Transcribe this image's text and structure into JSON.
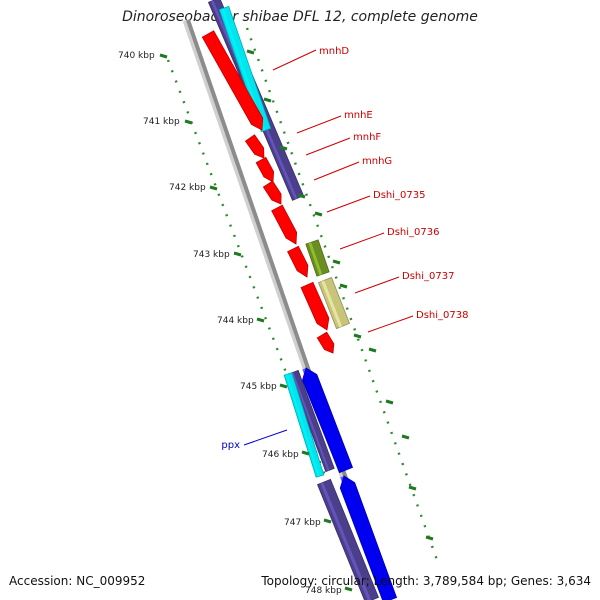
{
  "title": "Dinoroseobacter shibae DFL 12, complete genome",
  "footer": {
    "accession": "Accession: NC_009952",
    "summary": "Topology: circular; Length: 3,789,584 bp; Genes: 3,634"
  },
  "colors": {
    "backbone": "#8c8c8c",
    "red_gene": "#ff0000",
    "navy_gene": "#4b3f8c",
    "cyan_gene": "#00e5ee",
    "blue_gene": "#0000ee",
    "olive_gene": "#6b8e23",
    "khaki_gene": "#c8c47a",
    "tick_green": "#1f7a1f",
    "label_red": "#cc0000",
    "label_blue": "#0000cc"
  },
  "scale_ticks": [
    "740 kbp",
    "741 kbp",
    "742 kbp",
    "743 kbp",
    "744 kbp",
    "745 kbp",
    "746 kbp",
    "747 kbp",
    "748 kbp"
  ],
  "gene_labels": [
    {
      "name": "mnhD",
      "color_key": "label_red"
    },
    {
      "name": "mnhE",
      "color_key": "label_red"
    },
    {
      "name": "mnhF",
      "color_key": "label_red"
    },
    {
      "name": "mnhG",
      "color_key": "label_red"
    },
    {
      "name": "Dshi_0735",
      "color_key": "label_red"
    },
    {
      "name": "Dshi_0736",
      "color_key": "label_red"
    },
    {
      "name": "Dshi_0737",
      "color_key": "label_red"
    },
    {
      "name": "Dshi_0738",
      "color_key": "label_red"
    },
    {
      "name": "ppx",
      "color_key": "label_blue"
    }
  ]
}
